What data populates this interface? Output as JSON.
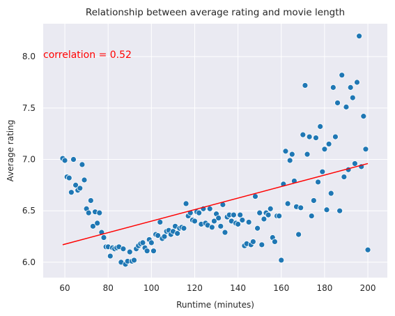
{
  "chart_data": {
    "type": "scatter",
    "title": "Relationship between average rating and movie length",
    "xlabel": "Runtime (minutes)",
    "ylabel": "Average rating",
    "xlim": [
      50,
      209
    ],
    "ylim": [
      5.85,
      8.32
    ],
    "xticks": [
      60,
      80,
      100,
      120,
      140,
      160,
      180,
      200
    ],
    "yticks": [
      6.0,
      6.5,
      7.0,
      7.5,
      8.0
    ],
    "grid": true,
    "background": "#eaeaf2",
    "point_color": "#1f77b4",
    "regression_line": {
      "color": "#ff0000",
      "x": [
        59,
        200
      ],
      "y": [
        6.17,
        6.96
      ]
    },
    "annotation": {
      "text": "correlation = 0.52",
      "color": "#ff0000",
      "x": 50,
      "y": 8.02
    },
    "points": [
      [
        59,
        7.01
      ],
      [
        60,
        6.99
      ],
      [
        61,
        6.83
      ],
      [
        62,
        6.82
      ],
      [
        63,
        6.68
      ],
      [
        64,
        7.0
      ],
      [
        65,
        6.75
      ],
      [
        66,
        6.7
      ],
      [
        67,
        6.72
      ],
      [
        68,
        6.95
      ],
      [
        69,
        6.8
      ],
      [
        70,
        6.52
      ],
      [
        71,
        6.48
      ],
      [
        72,
        6.6
      ],
      [
        73,
        6.35
      ],
      [
        74,
        6.49
      ],
      [
        75,
        6.38
      ],
      [
        76,
        6.48
      ],
      [
        77,
        6.29
      ],
      [
        78,
        6.24
      ],
      [
        79,
        6.15
      ],
      [
        80,
        6.15
      ],
      [
        81,
        6.06
      ],
      [
        82,
        6.14
      ],
      [
        83,
        6.13
      ],
      [
        84,
        6.14
      ],
      [
        85,
        6.15
      ],
      [
        86,
        6.0
      ],
      [
        87,
        6.13
      ],
      [
        88,
        5.98
      ],
      [
        89,
        6.01
      ],
      [
        90,
        6.1
      ],
      [
        91,
        6.01
      ],
      [
        92,
        6.02
      ],
      [
        93,
        6.13
      ],
      [
        94,
        6.16
      ],
      [
        95,
        6.18
      ],
      [
        96,
        6.19
      ],
      [
        97,
        6.14
      ],
      [
        98,
        6.11
      ],
      [
        99,
        6.22
      ],
      [
        100,
        6.19
      ],
      [
        101,
        6.11
      ],
      [
        102,
        6.27
      ],
      [
        103,
        6.26
      ],
      [
        104,
        6.39
      ],
      [
        105,
        6.23
      ],
      [
        106,
        6.25
      ],
      [
        107,
        6.3
      ],
      [
        108,
        6.31
      ],
      [
        109,
        6.27
      ],
      [
        110,
        6.3
      ],
      [
        111,
        6.35
      ],
      [
        112,
        6.28
      ],
      [
        113,
        6.33
      ],
      [
        114,
        6.34
      ],
      [
        115,
        6.33
      ],
      [
        116,
        6.57
      ],
      [
        117,
        6.45
      ],
      [
        118,
        6.48
      ],
      [
        119,
        6.41
      ],
      [
        120,
        6.4
      ],
      [
        121,
        6.49
      ],
      [
        122,
        6.48
      ],
      [
        123,
        6.37
      ],
      [
        124,
        6.52
      ],
      [
        125,
        6.38
      ],
      [
        126,
        6.36
      ],
      [
        127,
        6.52
      ],
      [
        128,
        6.34
      ],
      [
        129,
        6.4
      ],
      [
        130,
        6.47
      ],
      [
        131,
        6.43
      ],
      [
        132,
        6.35
      ],
      [
        133,
        6.56
      ],
      [
        134,
        6.29
      ],
      [
        135,
        6.44
      ],
      [
        136,
        6.46
      ],
      [
        137,
        6.4
      ],
      [
        138,
        6.46
      ],
      [
        139,
        6.38
      ],
      [
        140,
        6.37
      ],
      [
        141,
        6.46
      ],
      [
        142,
        6.41
      ],
      [
        143,
        6.16
      ],
      [
        144,
        6.18
      ],
      [
        145,
        6.39
      ],
      [
        146,
        6.17
      ],
      [
        147,
        6.2
      ],
      [
        148,
        6.64
      ],
      [
        149,
        6.33
      ],
      [
        150,
        6.48
      ],
      [
        151,
        6.17
      ],
      [
        152,
        6.42
      ],
      [
        153,
        6.48
      ],
      [
        154,
        6.46
      ],
      [
        155,
        6.52
      ],
      [
        156,
        6.24
      ],
      [
        157,
        6.2
      ],
      [
        158,
        6.45
      ],
      [
        159,
        6.45
      ],
      [
        160,
        6.02
      ],
      [
        161,
        6.76
      ],
      [
        162,
        7.08
      ],
      [
        163,
        6.57
      ],
      [
        164,
        6.99
      ],
      [
        165,
        7.05
      ],
      [
        166,
        6.79
      ],
      [
        167,
        6.54
      ],
      [
        168,
        6.27
      ],
      [
        169,
        6.53
      ],
      [
        170,
        7.24
      ],
      [
        171,
        7.72
      ],
      [
        172,
        7.05
      ],
      [
        173,
        7.22
      ],
      [
        174,
        6.45
      ],
      [
        175,
        6.6
      ],
      [
        176,
        7.21
      ],
      [
        177,
        6.78
      ],
      [
        178,
        7.32
      ],
      [
        179,
        6.88
      ],
      [
        180,
        7.1
      ],
      [
        181,
        6.51
      ],
      [
        182,
        7.15
      ],
      [
        183,
        6.67
      ],
      [
        184,
        7.7
      ],
      [
        185,
        7.22
      ],
      [
        186,
        7.55
      ],
      [
        187,
        6.5
      ],
      [
        188,
        7.82
      ],
      [
        189,
        6.83
      ],
      [
        190,
        7.51
      ],
      [
        191,
        6.9
      ],
      [
        192,
        7.7
      ],
      [
        193,
        7.6
      ],
      [
        194,
        6.96
      ],
      [
        195,
        7.75
      ],
      [
        196,
        8.2
      ],
      [
        197,
        6.93
      ],
      [
        198,
        7.42
      ],
      [
        199,
        7.1
      ],
      [
        200,
        6.12
      ]
    ]
  }
}
